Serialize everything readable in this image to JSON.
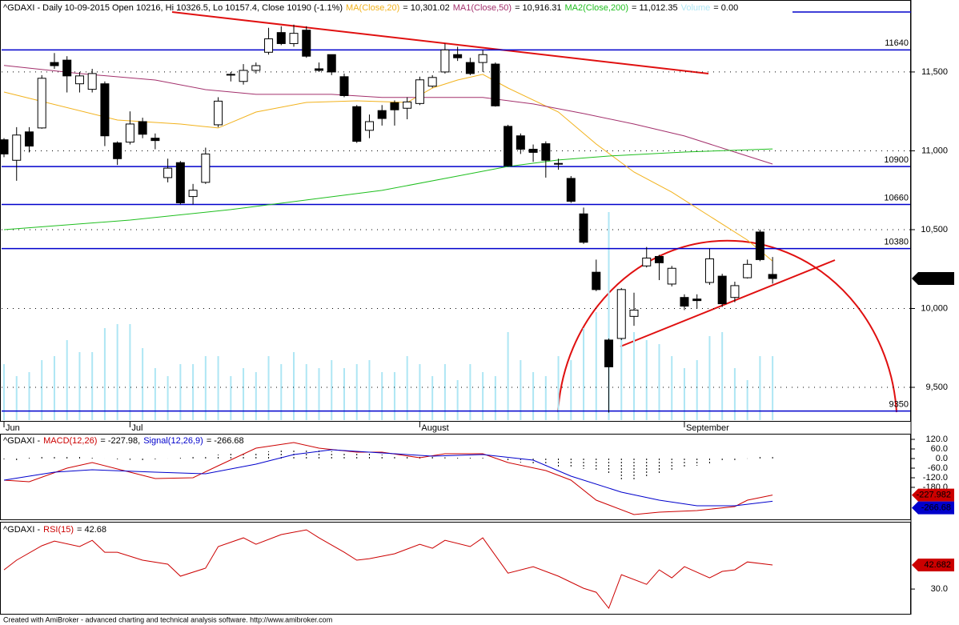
{
  "chart_data": [
    {
      "type": "candlestick",
      "title": "^GDAXI - Daily 10-09-2015 Open 10216, Hi 10326.5, Lo 10157.4, Close 10190 (-1.1%)",
      "categories": [
        "Jun",
        null,
        null,
        null,
        null,
        null,
        null,
        null,
        null,
        null,
        "Jul",
        null,
        null,
        null,
        null,
        null,
        null,
        null,
        null,
        null,
        null,
        null,
        null,
        null,
        null,
        null,
        null,
        null,
        null,
        null,
        null,
        null,
        null,
        "August",
        null,
        null,
        null,
        null,
        null,
        null,
        null,
        null,
        null,
        null,
        null,
        null,
        null,
        null,
        null,
        null,
        null,
        null,
        null,
        null,
        "September",
        null,
        null,
        null,
        null,
        null,
        null,
        null
      ],
      "open": [
        11070,
        10940,
        11120,
        11145,
        11560,
        11575,
        11425,
        11390,
        11425,
        11050,
        11055,
        11185,
        11080,
        10830,
        10925,
        10710,
        10800,
        11165,
        11480,
        11440,
        11510,
        11625,
        11750,
        11680,
        11765,
        11520,
        11610,
        11470,
        11280,
        11130,
        11255,
        11305,
        11270,
        11300,
        11410,
        11500,
        11610,
        11560,
        11560,
        11550,
        11155,
        11095,
        11010,
        11045,
        10920,
        10825,
        10600,
        10230,
        9800,
        9810,
        9950,
        10270,
        10330,
        10155,
        10070,
        10060,
        10165,
        10205,
        10070,
        10195,
        10485,
        10216
      ],
      "high": [
        11080,
        11150,
        11150,
        11480,
        11620,
        11600,
        11500,
        11520,
        11440,
        11060,
        11250,
        11210,
        11110,
        10950,
        10935,
        10790,
        11020,
        11340,
        11500,
        11550,
        11560,
        11780,
        11790,
        11800,
        11790,
        11560,
        11610,
        11490,
        11290,
        11230,
        11290,
        11320,
        11340,
        11470,
        11480,
        11680,
        11660,
        11590,
        11640,
        11560,
        11165,
        11110,
        11040,
        11060,
        10950,
        10840,
        10640,
        10310,
        9810,
        10130,
        10100,
        10390,
        10340,
        10270,
        10090,
        10090,
        10380,
        10220,
        10170,
        10310,
        10500,
        10326.5
      ],
      "low": [
        10960,
        10810,
        10990,
        11140,
        11520,
        11370,
        11370,
        11370,
        11030,
        10910,
        11040,
        11080,
        11010,
        10800,
        10660,
        10660,
        10790,
        11150,
        11440,
        11420,
        11490,
        11610,
        11670,
        11660,
        11590,
        11500,
        11480,
        11340,
        11050,
        11080,
        11160,
        11160,
        11200,
        11290,
        11400,
        11490,
        11570,
        11480,
        11500,
        11280,
        10900,
        10980,
        10930,
        10830,
        10880,
        10670,
        10410,
        10110,
        9340,
        9800,
        9890,
        10260,
        10180,
        10140,
        9990,
        10000,
        10150,
        10010,
        10040,
        10190,
        10300,
        10157.4
      ],
      "close": [
        10980,
        11100,
        11030,
        11460,
        11540,
        11475,
        11475,
        11490,
        11095,
        10950,
        11170,
        11105,
        11065,
        10890,
        10670,
        10750,
        10980,
        11315,
        11485,
        11510,
        11540,
        11710,
        11680,
        11745,
        11600,
        11510,
        11500,
        11350,
        11060,
        11185,
        11205,
        11260,
        11310,
        11450,
        11465,
        11640,
        11590,
        11490,
        11610,
        11285,
        10905,
        11010,
        10990,
        10940,
        10915,
        10680,
        10420,
        10120,
        9630,
        10120,
        9990,
        10320,
        10290,
        10255,
        10015,
        10050,
        10315,
        10030,
        10145,
        10280,
        10310,
        10190
      ],
      "last_value": {
        "value": 10190,
        "label": "10,190"
      },
      "series": [
        {
          "name": "MA(Close,20)",
          "color": "#f2b21c",
          "legend": {
            "value": 10301.02,
            "label": "= 10,301.02"
          },
          "x": [
            0,
            9,
            14,
            17,
            20,
            24,
            28,
            32,
            34,
            36,
            38,
            40,
            44,
            47,
            50,
            53,
            56,
            59,
            61
          ],
          "values": [
            11373,
            11195,
            11170,
            11145,
            11246,
            11307,
            11317,
            11307,
            11398,
            11449,
            11485,
            11398,
            11246,
            11043,
            10865,
            10738,
            10586,
            10434,
            10301
          ]
        },
        {
          "name": "MA1(Close,50)",
          "color": "#a3306c",
          "legend": {
            "value": 10916.31,
            "label": "= 10,916.31"
          },
          "x": [
            0,
            6,
            12,
            16,
            20,
            26,
            30,
            38,
            42,
            46,
            50,
            54,
            58,
            61
          ],
          "values": [
            11541,
            11490,
            11449,
            11388,
            11358,
            11358,
            11338,
            11338,
            11297,
            11236,
            11170,
            11094,
            10992,
            10916
          ]
        },
        {
          "name": "MA2(Close,200)",
          "color": "#1fbf1f",
          "legend": {
            "value": 11012.35,
            "label": "= 11,012.35"
          },
          "x": [
            0,
            10,
            18,
            24,
            30,
            36,
            40,
            44,
            48,
            54,
            61
          ],
          "values": [
            10500,
            10561,
            10627,
            10688,
            10749,
            10840,
            10901,
            10942,
            10967,
            10992,
            11012
          ]
        }
      ],
      "volume": {
        "name": "Volume",
        "color": "#aee6f4",
        "legend": {
          "value": 0,
          "label": "= 0.00"
        },
        "values": [
          70,
          55,
          60,
          75,
          80,
          100,
          85,
          85,
          115,
          120,
          120,
          90,
          65,
          55,
          70,
          70,
          80,
          80,
          55,
          65,
          60,
          80,
          70,
          85,
          70,
          65,
          75,
          65,
          70,
          75,
          60,
          60,
          80,
          70,
          55,
          70,
          50,
          70,
          60,
          55,
          110,
          75,
          60,
          55,
          80,
          75,
          115,
          135,
          260,
          160,
          110,
          100,
          95,
          80,
          65,
          75,
          105,
          110,
          65,
          50,
          80,
          80
        ]
      },
      "volume_ylim": [
        0,
        520
      ],
      "levels": [
        11640,
        10900,
        10660,
        10380,
        9350
      ],
      "level_color": "#0000cc",
      "ylim": [
        9292,
        11931
      ],
      "yticks": [
        {
          "value": 11500,
          "label": "11,500"
        },
        {
          "value": 11000,
          "label": "11,000"
        },
        {
          "value": 10500,
          "label": "10,500"
        },
        {
          "value": 10000,
          "label": "10,000"
        },
        {
          "value": 9500,
          "label": "9,500"
        }
      ],
      "grid": true
    },
    {
      "type": "line",
      "title": "^GDAXI -",
      "series": [
        {
          "name": "MACD(12,26)",
          "color": "#cc0000",
          "legend": {
            "value": -227.98,
            "label": "= -227.98,"
          },
          "last_value": {
            "value": -227.982,
            "label": "-227.982"
          },
          "x": [
            0,
            2,
            5,
            7,
            10,
            12,
            15,
            17,
            20,
            23,
            25,
            28,
            30,
            33,
            35,
            38,
            40,
            43,
            45,
            47,
            50,
            52,
            55,
            58,
            59,
            61
          ],
          "values": [
            -135,
            -145,
            -60,
            -25,
            -85,
            -125,
            -120,
            -45,
            65,
            100,
            65,
            40,
            40,
            5,
            30,
            30,
            -25,
            -75,
            -135,
            -260,
            -350,
            -335,
            -325,
            -300,
            -260,
            -228
          ]
        },
        {
          "name": "Signal(12,26,9)",
          "color": "#0000cc",
          "legend": {
            "value": -266.68,
            "label": "= -266.68"
          },
          "last_value": {
            "value": -266.68,
            "label": "-266.68"
          },
          "x": [
            0,
            4,
            7,
            12,
            16,
            20,
            23,
            26,
            30,
            34,
            38,
            42,
            45,
            49,
            52,
            55,
            58,
            61
          ],
          "values": [
            -135,
            -85,
            -70,
            -85,
            -95,
            -35,
            25,
            55,
            35,
            15,
            25,
            -10,
            -110,
            -210,
            -260,
            -295,
            -295,
            -267
          ]
        }
      ],
      "histogram": {
        "values": [
          -5,
          -10,
          5,
          10,
          10,
          12,
          10,
          5,
          0,
          -5,
          -8,
          -10,
          -5,
          0,
          5,
          10,
          18,
          25,
          30,
          35,
          40,
          45,
          50,
          55,
          55,
          50,
          45,
          40,
          35,
          30,
          25,
          20,
          15,
          12,
          10,
          8,
          5,
          5,
          5,
          0,
          -15,
          -25,
          -35,
          -45,
          -50,
          -55,
          -65,
          -80,
          -100,
          -130,
          -130,
          -120,
          -100,
          -80,
          -60,
          -45,
          -30,
          -20,
          -10,
          0,
          10,
          15
        ]
      },
      "ylim": [
        -375,
        150
      ],
      "yticks": [
        {
          "value": 120,
          "label": "120.0"
        },
        {
          "value": 60,
          "label": "60.0"
        },
        {
          "value": 0,
          "label": "0.0"
        },
        {
          "value": -60,
          "label": "-60.0"
        },
        {
          "value": -120,
          "label": "-120.0"
        },
        {
          "value": -180,
          "label": "-180.0"
        }
      ]
    },
    {
      "type": "line",
      "title": "^GDAXI -",
      "series": [
        {
          "name": "RSI(15)",
          "color": "#cc0000",
          "legend": {
            "value": 42.68,
            "label": "= 42.68"
          },
          "last_value": {
            "value": 42.682,
            "label": "42.682"
          },
          "x": [
            0,
            1,
            3,
            4,
            6,
            7,
            8,
            9,
            11,
            13,
            14,
            16,
            17,
            19,
            20,
            22,
            24,
            25,
            27,
            28,
            29,
            31,
            33,
            34,
            35,
            37,
            38,
            40,
            42,
            44,
            46,
            47,
            48,
            49,
            51,
            52,
            53,
            54,
            56,
            57,
            58,
            59,
            61
          ],
          "values": [
            40.1,
            45.2,
            52.8,
            55.3,
            52.4,
            55.7,
            49.4,
            49.4,
            45.2,
            43.1,
            36.8,
            41,
            52.4,
            57,
            53.6,
            58.7,
            61.2,
            57,
            49.4,
            45.2,
            46,
            48.6,
            53.6,
            51.5,
            55.7,
            52.4,
            57,
            38.4,
            41.8,
            36.8,
            30.4,
            28.3,
            19.9,
            37.6,
            32.5,
            40.1,
            35.9,
            41.8,
            35.9,
            39.3,
            40.1,
            44.3,
            42.68
          ]
        }
      ],
      "ylim": [
        17.8,
        64.2
      ],
      "yticks": [
        {
          "value": 30,
          "label": "30.0"
        }
      ]
    }
  ],
  "footer": "Created with AmiBroker - advanced charting and technical analysis software. http://www.amibroker.com"
}
